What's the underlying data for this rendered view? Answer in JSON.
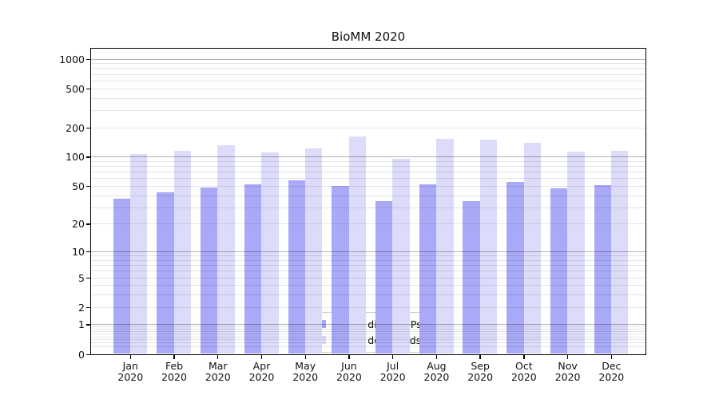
{
  "title": "BioMM 2020",
  "legend": {
    "items": [
      {
        "label": "Nb of distinct IPs",
        "color": "#a9a9f7"
      },
      {
        "label": "Nb of downloads",
        "color": "#dcdcfa"
      }
    ]
  },
  "chart_data": {
    "type": "bar",
    "title": "BioMM 2020",
    "categories": [
      "Jan 2020",
      "Feb 2020",
      "Mar 2020",
      "Apr 2020",
      "May 2020",
      "Jun 2020",
      "Jul 2020",
      "Aug 2020",
      "Sep 2020",
      "Oct 2020",
      "Nov 2020",
      "Dec 2020"
    ],
    "x_tick_months": [
      "Jan",
      "Feb",
      "Mar",
      "Apr",
      "May",
      "Jun",
      "Jul",
      "Aug",
      "Sep",
      "Oct",
      "Nov",
      "Dec"
    ],
    "x_tick_year": "2020",
    "series": [
      {
        "name": "Nb of distinct IPs",
        "color": "#a9a9f7",
        "values": [
          37,
          43,
          48,
          52,
          57,
          50,
          35,
          52,
          35,
          55,
          47,
          51
        ]
      },
      {
        "name": "Nb of downloads",
        "color": "#dcdcfa",
        "values": [
          107,
          114,
          132,
          110,
          122,
          162,
          95,
          152,
          150,
          140,
          113,
          115
        ]
      }
    ],
    "xlabel": "",
    "ylabel": "",
    "y_axis": {
      "scale": "log(1+y)",
      "ylim": [
        0,
        1300
      ],
      "tick_values": [
        1000,
        500,
        200,
        100,
        50,
        20,
        10,
        5,
        2,
        1,
        0
      ],
      "tick_labels": [
        "1000",
        "500",
        "200",
        "100",
        "50",
        "20",
        "10",
        "5",
        "2",
        "1",
        "0"
      ]
    },
    "grid": {
      "on": true,
      "major_values": [
        1,
        10,
        100,
        1000
      ],
      "minor_values": [
        0.2,
        0.3,
        0.4,
        0.5,
        0.6,
        0.7,
        0.8,
        0.9,
        2,
        3,
        4,
        6,
        7,
        8,
        9,
        5,
        20,
        30,
        40,
        50,
        60,
        70,
        80,
        90,
        200,
        300,
        400,
        500,
        600,
        700,
        800,
        900
      ],
      "major_color": "#b2b2b2",
      "minor_color": "#e7e7e7"
    },
    "legend_position": "lower center"
  }
}
